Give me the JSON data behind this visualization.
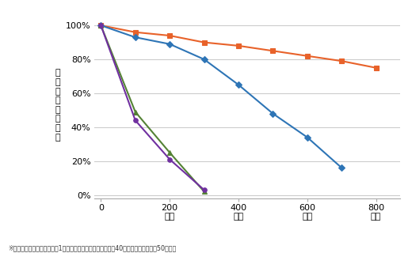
{
  "series": [
    {
      "label": "orange_series",
      "color": "#E8622A",
      "marker": "s",
      "markersize": 5,
      "x": [
        0,
        100,
        200,
        300,
        400,
        500,
        600,
        700,
        800
      ],
      "y": [
        100,
        96,
        94,
        90,
        88,
        85,
        82,
        79,
        75
      ]
    },
    {
      "label": "blue_series",
      "color": "#2E75B6",
      "marker": "D",
      "markersize": 4,
      "x": [
        0,
        100,
        200,
        300,
        400,
        500,
        600,
        700
      ],
      "y": [
        100,
        93,
        89,
        80,
        65,
        48,
        34,
        16
      ]
    },
    {
      "label": "green_series",
      "color": "#548235",
      "marker": "^",
      "markersize": 5,
      "x": [
        0,
        100,
        200,
        300
      ],
      "y": [
        100,
        49,
        25,
        2
      ]
    },
    {
      "label": "purple_series",
      "color": "#7030A0",
      "marker": "o",
      "markersize": 4,
      "x": [
        0,
        100,
        200,
        300
      ],
      "y": [
        100,
        44,
        21,
        3
      ]
    }
  ],
  "xlim": [
    -20,
    870
  ],
  "ylim": [
    -2,
    108
  ],
  "xticks": [
    0,
    200,
    400,
    600,
    800
  ],
  "yticks": [
    0,
    20,
    40,
    60,
    80,
    100
  ],
  "ytick_labels": [
    "0%",
    "20%",
    "40%",
    "60%",
    "80%",
    "100%"
  ],
  "ylabel": "光\n沢\n保\n持\n率\n（\n％\n）",
  "grid_color": "#CCCCCC",
  "bg_color": "#FFFFFF",
  "footnote": "※超促進耐候性試験で実際の1年に相当する時間：内陸部（約40時間）／沿岸部（約50時間）",
  "linewidth": 1.5,
  "spine_color": "#AAAAAA"
}
